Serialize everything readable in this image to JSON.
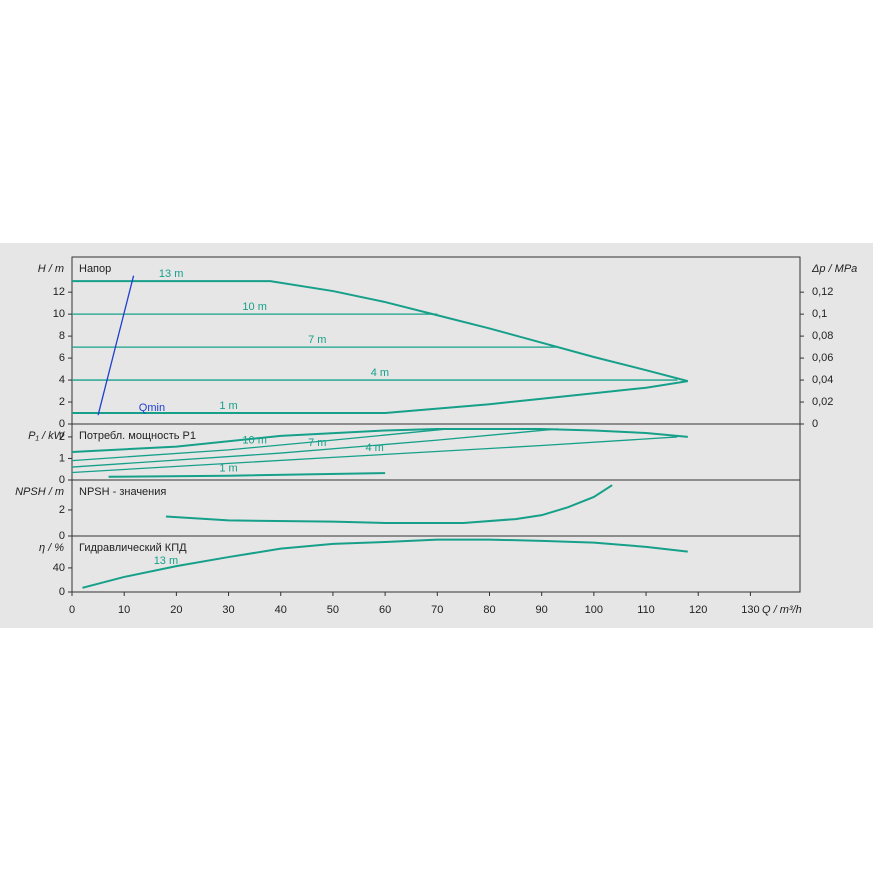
{
  "chart_data": [
    {
      "type": "line",
      "title": "Напор",
      "ylabel": "H / m",
      "ylim": [
        0,
        15.2
      ],
      "yticks": [
        0,
        2,
        4,
        6,
        8,
        10,
        12
      ],
      "y2label": "Δp / MPa",
      "y2lim": [
        0,
        0.152
      ],
      "y2ticks": [
        0,
        {
          "value": 0.02,
          "label": "0,02"
        },
        {
          "value": 0.04,
          "label": "0,04"
        },
        {
          "value": 0.06,
          "label": "0,06"
        },
        {
          "value": 0.08,
          "label": "0,08"
        },
        {
          "value": 0.1,
          "label": "0,1"
        },
        {
          "value": 0.12,
          "label": "0,12"
        }
      ],
      "series": [
        {
          "name": "13 m",
          "color": "#16a08a",
          "x": [
            0,
            38,
            50,
            60,
            70,
            80,
            90,
            100,
            110,
            118
          ],
          "values": [
            13,
            13,
            12.1,
            11.1,
            9.9,
            8.7,
            7.4,
            6.1,
            4.9,
            3.9
          ]
        },
        {
          "name": "10 m",
          "color": "#16a08a",
          "x": [
            0,
            70
          ],
          "values": [
            10,
            10
          ]
        },
        {
          "name": "7 m",
          "color": "#16a08a",
          "x": [
            0,
            93
          ],
          "values": [
            7,
            7
          ]
        },
        {
          "name": "4 m",
          "color": "#16a08a",
          "x": [
            0,
            116
          ],
          "values": [
            4,
            4
          ]
        },
        {
          "name": "1 m",
          "color": "#16a08a",
          "x": [
            0,
            60,
            70,
            80,
            90,
            100,
            110,
            118
          ],
          "values": [
            1,
            1,
            1.4,
            1.8,
            2.3,
            2.8,
            3.3,
            3.9
          ]
        },
        {
          "name": "Qmin",
          "color": "#1f3fd0",
          "x": [
            5,
            11.8
          ],
          "values": [
            0.8,
            13.5
          ]
        }
      ]
    },
    {
      "type": "line",
      "title": "Потребл. мощность P1",
      "ylabel": "P₁ / kW",
      "ylim": [
        0,
        2.6
      ],
      "yticks": [
        0,
        1,
        2
      ],
      "series": [
        {
          "color": "#16a08a",
          "x": [
            0,
            20,
            40,
            60,
            70,
            90,
            100,
            110,
            118
          ],
          "values": [
            1.3,
            1.55,
            2.05,
            2.3,
            2.37,
            2.37,
            2.3,
            2.18,
            2.0
          ]
        },
        {
          "name": "10 m",
          "color": "#16a08a",
          "x": [
            0,
            30,
            50,
            72
          ],
          "values": [
            0.9,
            1.4,
            1.85,
            2.37
          ]
        },
        {
          "name": "7 m",
          "color": "#16a08a",
          "x": [
            0,
            40,
            70,
            93
          ],
          "values": [
            0.6,
            1.25,
            1.85,
            2.37
          ]
        },
        {
          "name": "4 m",
          "color": "#16a08a",
          "x": [
            0,
            50,
            90,
            116
          ],
          "values": [
            0.35,
            1.05,
            1.6,
            2.0
          ]
        },
        {
          "name": "1 m",
          "color": "#16a08a",
          "x": [
            7,
            30,
            60
          ],
          "values": [
            0.15,
            0.2,
            0.32
          ]
        }
      ]
    },
    {
      "type": "line",
      "title": "NPSH - значения",
      "ylabel": "NPSH / m",
      "ylim": [
        0,
        4.3
      ],
      "yticks": [
        0,
        2
      ],
      "series": [
        {
          "color": "#16a08a",
          "x": [
            18,
            30,
            50,
            60,
            75,
            85,
            90,
            95,
            100,
            103.5
          ],
          "values": [
            1.5,
            1.2,
            1.1,
            1.0,
            1.0,
            1.3,
            1.6,
            2.2,
            3.0,
            3.9
          ]
        }
      ]
    },
    {
      "type": "line",
      "title": "Гидравлический КПД",
      "ylabel": "η / %",
      "ylim": [
        0,
        93
      ],
      "yticks": [
        0,
        40
      ],
      "xlabel": "Q / m³/h",
      "xlim": [
        0,
        139.5
      ],
      "xticks": [
        0,
        10,
        20,
        30,
        40,
        50,
        60,
        70,
        80,
        90,
        100,
        110,
        120,
        130
      ],
      "series": [
        {
          "name": "13 m",
          "color": "#16a08a",
          "x": [
            2,
            10,
            20,
            30,
            40,
            50,
            60,
            70,
            80,
            90,
            100,
            110,
            118
          ],
          "values": [
            7,
            25,
            43,
            58,
            72,
            80,
            83,
            87,
            87,
            85,
            82,
            75,
            67
          ]
        }
      ]
    }
  ]
}
